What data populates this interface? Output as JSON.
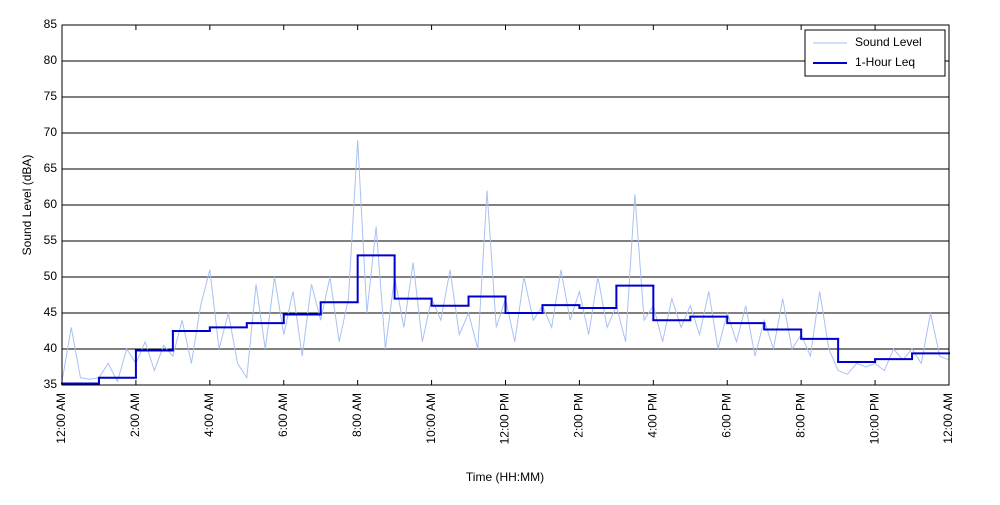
{
  "chart_data": {
    "type": "line",
    "xlabel": "Time (HH:MM)",
    "ylabel": "Sound Level (dBA)",
    "xlim": [
      0,
      24
    ],
    "ylim": [
      35,
      85
    ],
    "xticks": [
      {
        "value": 0,
        "label": "12:00 AM"
      },
      {
        "value": 2,
        "label": "2:00 AM"
      },
      {
        "value": 4,
        "label": "4:00 AM"
      },
      {
        "value": 6,
        "label": "6:00 AM"
      },
      {
        "value": 8,
        "label": "8:00 AM"
      },
      {
        "value": 10,
        "label": "10:00 AM"
      },
      {
        "value": 12,
        "label": "12:00 PM"
      },
      {
        "value": 14,
        "label": "2:00 PM"
      },
      {
        "value": 16,
        "label": "4:00 PM"
      },
      {
        "value": 18,
        "label": "6:00 PM"
      },
      {
        "value": 20,
        "label": "8:00 PM"
      },
      {
        "value": 22,
        "label": "10:00 PM"
      },
      {
        "value": 24,
        "label": "12:00 AM"
      }
    ],
    "yticks": [
      35,
      40,
      45,
      50,
      55,
      60,
      65,
      70,
      75,
      80,
      85
    ],
    "grid": true,
    "legend": "top-right",
    "series": [
      {
        "name": "Sound Level",
        "color": "#a9c1f2",
        "step": false,
        "x": [
          0,
          0.25,
          0.5,
          0.75,
          1,
          1.25,
          1.5,
          1.75,
          2,
          2.25,
          2.5,
          2.75,
          3,
          3.25,
          3.5,
          3.75,
          4,
          4.25,
          4.5,
          4.75,
          5,
          5.25,
          5.5,
          5.75,
          6,
          6.25,
          6.5,
          6.75,
          7,
          7.25,
          7.5,
          7.75,
          8,
          8.25,
          8.5,
          8.75,
          9,
          9.25,
          9.5,
          9.75,
          10,
          10.25,
          10.5,
          10.75,
          11,
          11.25,
          11.5,
          11.75,
          12,
          12.25,
          12.5,
          12.75,
          13,
          13.25,
          13.5,
          13.75,
          14,
          14.25,
          14.5,
          14.75,
          15,
          15.25,
          15.5,
          15.75,
          16,
          16.25,
          16.5,
          16.75,
          17,
          17.25,
          17.5,
          17.75,
          18,
          18.25,
          18.5,
          18.75,
          19,
          19.25,
          19.5,
          19.75,
          20,
          20.25,
          20.5,
          20.75,
          21,
          21.25,
          21.5,
          21.75,
          22,
          22.25,
          22.5,
          22.75,
          23,
          23.25,
          23.5,
          23.75,
          24
        ],
        "values": [
          35.5,
          43,
          36,
          35.8,
          36,
          38,
          35.5,
          40,
          38,
          41,
          37,
          40.5,
          39,
          44,
          38,
          46,
          51,
          40,
          45,
          38,
          36,
          49,
          40,
          50,
          42,
          48,
          39,
          49,
          44,
          50,
          41,
          47,
          69,
          45,
          57,
          40,
          50,
          43,
          52,
          41,
          47,
          44,
          51,
          42,
          45,
          40,
          62,
          43,
          47,
          41,
          50,
          44,
          46,
          43,
          51,
          44,
          48,
          42,
          50,
          43,
          46,
          41,
          61.5,
          44,
          46,
          41,
          47,
          43,
          46,
          42,
          48,
          40,
          45,
          41,
          46,
          39,
          44,
          40,
          47,
          40,
          42,
          39,
          48,
          40,
          37,
          36.5,
          38,
          37.5,
          38,
          37,
          40,
          38.5,
          40,
          38,
          45,
          39,
          38.5
        ]
      },
      {
        "name": "1-Hour Leq",
        "color": "#0000cc",
        "step": true,
        "x": [
          0,
          1,
          2,
          3,
          4,
          5,
          6,
          7,
          8,
          9,
          10,
          11,
          12,
          13,
          14,
          15,
          16,
          17,
          18,
          19,
          20,
          21,
          22,
          23
        ],
        "values": [
          35.2,
          36,
          39.8,
          42.5,
          43,
          43.6,
          44.8,
          46.5,
          53,
          47,
          46,
          47.3,
          45,
          46.1,
          45.7,
          48.8,
          44,
          44.5,
          43.6,
          42.7,
          41.4,
          38.2,
          38.6,
          39.4
        ]
      }
    ]
  }
}
